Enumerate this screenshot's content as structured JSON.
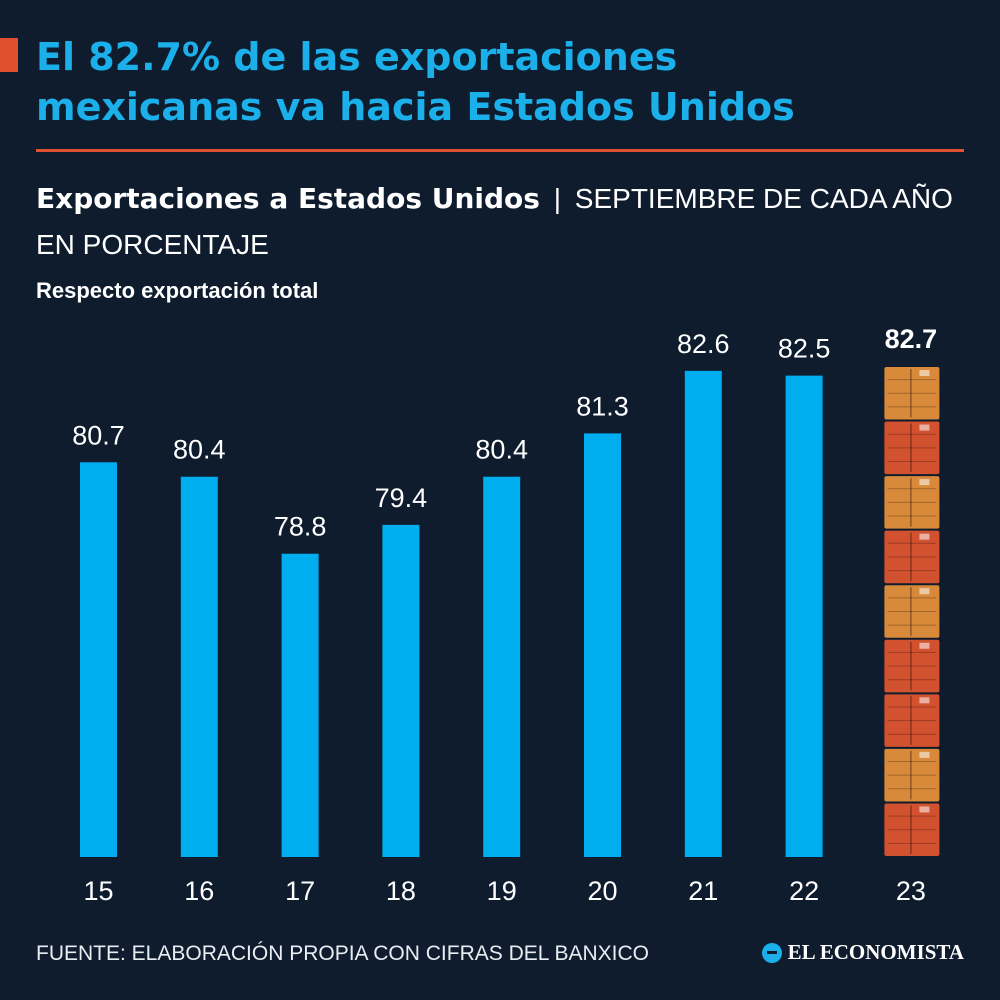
{
  "headline": {
    "line1": "El 82.7% de las exportaciones",
    "line2": "mexicanas va hacia Estados Unidos"
  },
  "subtitle": {
    "bold": "Exportaciones a Estados Unidos",
    "separator": "|",
    "rest": "SEPTIEMBRE DE CADA AÑO EN PORCENTAJE"
  },
  "note": "Respecto exportación total",
  "source": "FUENTE: ELABORACIÓN PROPIA CON CIFRAS DEL BANXICO",
  "brand": "EL ECONOMISTA",
  "colors": {
    "background": "#0e1c2e",
    "accent": "#e0502e",
    "bar": "#00adef",
    "headline": "#1cb0ea",
    "container_orange": "#d8893a",
    "container_red": "#d2512f"
  },
  "chart_data": {
    "type": "bar",
    "title": "Exportaciones a Estados Unidos",
    "xlabel": "",
    "ylabel": "Respecto exportación total",
    "categories": [
      "15",
      "16",
      "17",
      "18",
      "19",
      "20",
      "21",
      "22",
      "23"
    ],
    "values": [
      80.7,
      80.4,
      78.8,
      79.4,
      80.4,
      81.3,
      82.6,
      82.5,
      82.7
    ],
    "value_labels": [
      "80.7",
      "80.4",
      "78.8",
      "79.4",
      "80.4",
      "81.3",
      "82.6",
      "82.5",
      "82.7"
    ],
    "highlight_index": 8,
    "ylim": [
      72.5,
      82.7
    ],
    "grid": false,
    "legend": "none"
  }
}
